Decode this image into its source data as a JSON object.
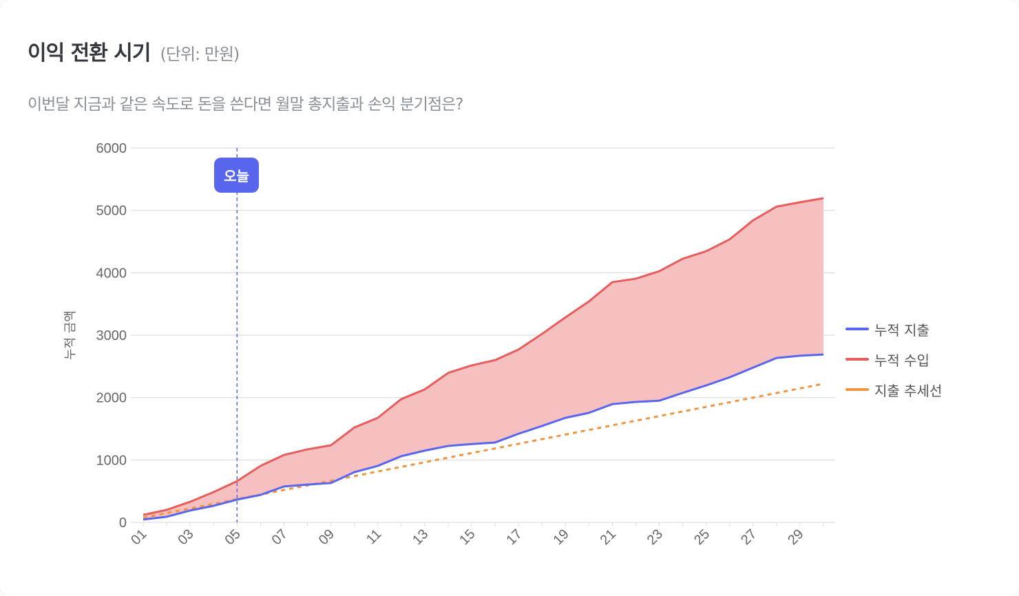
{
  "header": {
    "title": "이익 전환 시기",
    "unit": "(단위: 만원)",
    "subtitle": "이번달 지금과 같은 속도로 돈을 쓴다면 월말 총지출과 손익 분기점은?"
  },
  "chart_data": {
    "type": "line",
    "ylabel": "누적 금액",
    "xlabel": "",
    "ylim": [
      0,
      6000
    ],
    "yticks": [
      "0",
      "1000",
      "2000",
      "3000",
      "4000",
      "5000",
      "6000"
    ],
    "categories": [
      "01",
      "02",
      "03",
      "04",
      "05",
      "06",
      "07",
      "08",
      "09",
      "10",
      "11",
      "12",
      "13",
      "14",
      "15",
      "16",
      "17",
      "18",
      "19",
      "20",
      "21",
      "22",
      "23",
      "24",
      "25",
      "26",
      "27",
      "28",
      "29",
      "30"
    ],
    "xtick_labels": [
      "01",
      "03",
      "05",
      "07",
      "09",
      "11",
      "13",
      "15",
      "17",
      "19",
      "21",
      "23",
      "25",
      "27",
      "29"
    ],
    "grid": true,
    "legend_position": "right",
    "today_marker": {
      "category": "05",
      "label": "오늘",
      "color": "#5866ee"
    },
    "fill_between": {
      "series": [
        "누적 수입",
        "누적 지출"
      ],
      "color": "#f5bdbd"
    },
    "series": [
      {
        "name": "누적 지출",
        "color": "#5866ee",
        "style": "solid",
        "values": [
          45,
          90,
          190,
          265,
          365,
          440,
          575,
          605,
          630,
          805,
          905,
          1060,
          1150,
          1225,
          1255,
          1280,
          1420,
          1545,
          1675,
          1755,
          1895,
          1930,
          1950,
          2075,
          2195,
          2325,
          2480,
          2635,
          2670,
          2690
        ]
      },
      {
        "name": "누적 수입",
        "color": "#e85c5c",
        "style": "solid",
        "values": [
          120,
          200,
          330,
          485,
          660,
          905,
          1080,
          1170,
          1235,
          1520,
          1675,
          1975,
          2130,
          2395,
          2515,
          2600,
          2770,
          3020,
          3285,
          3540,
          3850,
          3905,
          4025,
          4225,
          4345,
          4535,
          4840,
          5060,
          5130,
          5195
        ]
      },
      {
        "name": "지출 추세선",
        "color": "#f0953f",
        "style": "dotted",
        "values": [
          75,
          149,
          223,
          297,
          371,
          445,
          519,
          593,
          667,
          741,
          815,
          889,
          963,
          1037,
          1111,
          1185,
          1259,
          1333,
          1407,
          1481,
          1555,
          1629,
          1703,
          1777,
          1851,
          1925,
          1999,
          2073,
          2147,
          2221
        ]
      }
    ]
  }
}
